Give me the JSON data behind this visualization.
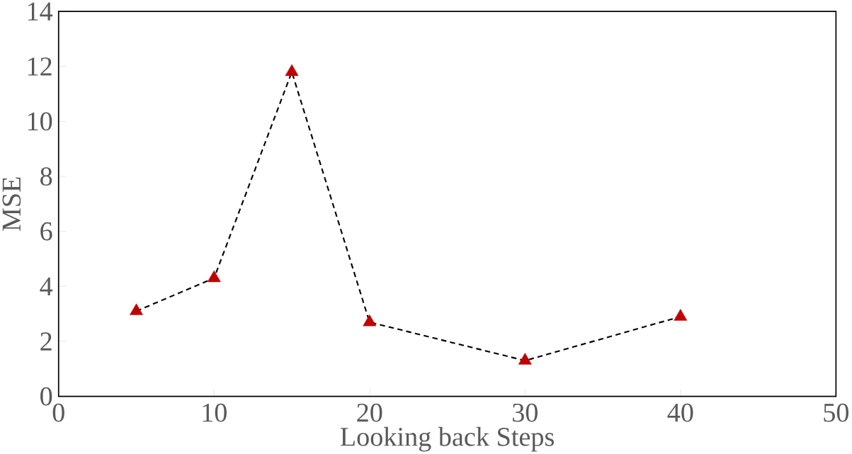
{
  "chart_data": {
    "type": "line",
    "xlabel": "Looking back Steps",
    "ylabel": "MSE",
    "x": [
      5,
      10,
      15,
      20,
      30,
      40
    ],
    "series": [
      {
        "color": "#c00000",
        "values": [
          3.1,
          4.3,
          11.8,
          2.7,
          1.3,
          2.9
        ]
      }
    ],
    "marker": "triangle",
    "line_style": "dashed",
    "xlim": [
      0,
      50
    ],
    "xticks": [
      0,
      10,
      20,
      30,
      40,
      50
    ],
    "ylim": [
      0,
      14
    ],
    "yticks": [
      0,
      2,
      4,
      6,
      8,
      10,
      12,
      14
    ]
  }
}
